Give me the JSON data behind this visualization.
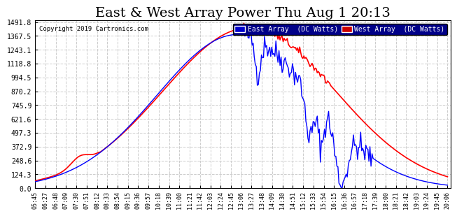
{
  "title": "East & West Array Power Thu Aug 1 20:13",
  "copyright": "Copyright 2019 Cartronics.com",
  "legend_east": "East Array  (DC Watts)",
  "legend_west": "West Array  (DC Watts)",
  "east_color": "#0000ff",
  "west_color": "#ff0000",
  "legend_east_bg": "#0000cc",
  "legend_west_bg": "#cc0000",
  "ymax": 1491.8,
  "ymin": 0.0,
  "yticks": [
    0.0,
    124.3,
    248.6,
    372.9,
    497.3,
    621.6,
    745.9,
    870.2,
    994.5,
    1118.8,
    1243.1,
    1367.5,
    1491.8
  ],
  "background_color": "#ffffff",
  "plot_bg": "#ffffff",
  "grid_color": "#cccccc",
  "title_fontsize": 14,
  "time_labels": [
    "05:45",
    "06:27",
    "06:48",
    "07:09",
    "07:30",
    "07:51",
    "08:12",
    "08:33",
    "08:54",
    "09:15",
    "09:36",
    "09:57",
    "10:18",
    "10:39",
    "11:00",
    "11:21",
    "11:42",
    "12:03",
    "12:24",
    "12:45",
    "13:06",
    "13:27",
    "13:48",
    "14:09",
    "14:30",
    "14:51",
    "15:12",
    "15:33",
    "15:54",
    "16:15",
    "16:36",
    "16:57",
    "17:18",
    "17:39",
    "18:00",
    "18:21",
    "18:42",
    "19:03",
    "19:24",
    "19:45",
    "20:06"
  ]
}
